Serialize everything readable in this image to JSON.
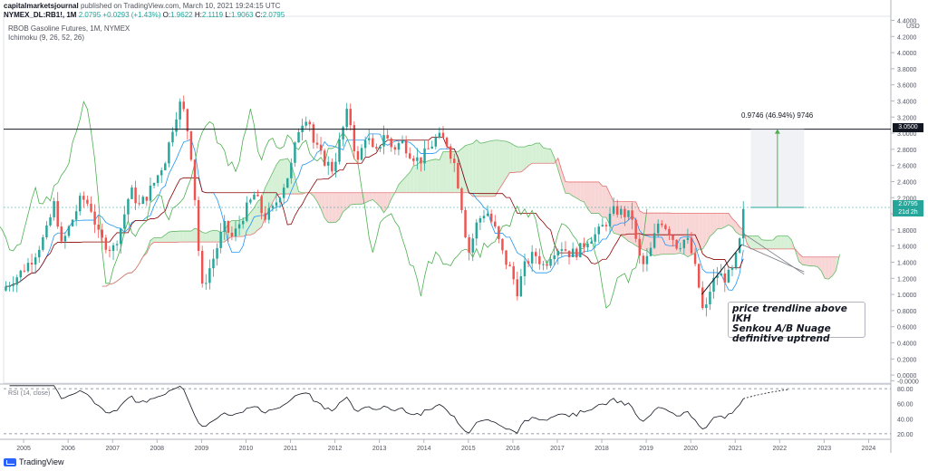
{
  "header": {
    "publisher": "capitalmarketsjournal",
    "published_text": "published on TradingView.com, March 10, 2021 19:24:15 UTC",
    "symbol_line": "NYMEX_DL:RB1!, 1M",
    "last_price": "2.0795",
    "change": "+0.0293 (+1.43%)",
    "open_label": "O:",
    "open": "1.9622",
    "high_label": "H:",
    "high": "2.1119",
    "low_label": "L:",
    "low": "1.9063",
    "close_label": "C:",
    "close": "2.0795"
  },
  "legend": {
    "title": "RBOB Gasoline Futures, 1M, NYMEX",
    "indicator": "Ichimoku (9, 26, 52, 26)"
  },
  "rsi_legend": "RSI (14, close)",
  "measure_label": "0.9746 (46.94%) 9746",
  "annotation": [
    "price trendline above IKH",
    "Senkou A/B Nuage",
    "definitive uptrend"
  ],
  "price_tags": {
    "level": "3.0500",
    "last": "2.0795",
    "countdown": "21d 2h"
  },
  "footer": {
    "brand": "TradingView"
  },
  "colors": {
    "up": "#26a69a",
    "down": "#ef5350",
    "kumo_bull": "#d6f0d6",
    "kumo_bear": "#f9d6d6",
    "tenkan": "#2196f3",
    "kijun": "#8b0000",
    "chikou": "#4caf50"
  },
  "chart_data": [
    {
      "type": "candlestick",
      "title": "RBOB Gasoline Futures, 1M, NYMEX",
      "y_axis_unit": "USD",
      "y_ticks": [
        "4.4000",
        "4.2000",
        "4.0000",
        "3.8000",
        "3.6000",
        "3.4000",
        "3.2000",
        "3.0000",
        "2.8000",
        "2.6000",
        "2.4000",
        "2.2000",
        "2.0000",
        "1.8000",
        "1.6000",
        "1.4000",
        "1.2000",
        "1.0000",
        "0.8000",
        "0.6000",
        "0.4000",
        "0.2000",
        "0.0000",
        "-0.0000"
      ],
      "x_ticks": [
        "2005",
        "2006",
        "2007",
        "2008",
        "2009",
        "2010",
        "2011",
        "2012",
        "2013",
        "2014",
        "2015",
        "2016",
        "2017",
        "2018",
        "2019",
        "2020",
        "2021",
        "2022",
        "2023",
        "2024"
      ],
      "ylim": [
        -0.1,
        4.45
      ],
      "xlim": [
        2004.55,
        2024.5
      ],
      "close_path": [
        [
          2004.6,
          1.1
        ],
        [
          2004.9,
          1.25
        ],
        [
          2005.2,
          1.45
        ],
        [
          2005.5,
          1.75
        ],
        [
          2005.7,
          2.15
        ],
        [
          2005.85,
          1.6
        ],
        [
          2006.0,
          1.8
        ],
        [
          2006.3,
          2.2
        ],
        [
          2006.5,
          2.1
        ],
        [
          2006.7,
          1.7
        ],
        [
          2006.9,
          1.6
        ],
        [
          2007.0,
          1.55
        ],
        [
          2007.2,
          1.85
        ],
        [
          2007.4,
          2.3
        ],
        [
          2007.6,
          2.1
        ],
        [
          2007.8,
          2.25
        ],
        [
          2007.95,
          2.4
        ],
        [
          2008.2,
          2.7
        ],
        [
          2008.4,
          3.2
        ],
        [
          2008.55,
          3.4
        ],
        [
          2008.7,
          3.0
        ],
        [
          2008.8,
          2.6
        ],
        [
          2008.9,
          1.8
        ],
        [
          2009.0,
          1.05
        ],
        [
          2009.1,
          1.2
        ],
        [
          2009.3,
          1.5
        ],
        [
          2009.5,
          1.85
        ],
        [
          2009.7,
          1.7
        ],
        [
          2009.95,
          2.0
        ],
        [
          2010.2,
          2.25
        ],
        [
          2010.4,
          1.95
        ],
        [
          2010.6,
          2.05
        ],
        [
          2010.8,
          2.3
        ],
        [
          2011.0,
          2.55
        ],
        [
          2011.2,
          3.1
        ],
        [
          2011.4,
          3.25
        ],
        [
          2011.5,
          2.9
        ],
        [
          2011.7,
          2.7
        ],
        [
          2011.95,
          2.55
        ],
        [
          2012.2,
          3.1
        ],
        [
          2012.3,
          3.3
        ],
        [
          2012.5,
          2.6
        ],
        [
          2012.7,
          3.0
        ],
        [
          2012.9,
          2.7
        ],
        [
          2013.1,
          3.0
        ],
        [
          2013.3,
          2.8
        ],
        [
          2013.5,
          2.9
        ],
        [
          2013.7,
          2.75
        ],
        [
          2013.9,
          2.65
        ],
        [
          2014.1,
          2.8
        ],
        [
          2014.3,
          2.95
        ],
        [
          2014.5,
          2.9
        ],
        [
          2014.7,
          2.6
        ],
        [
          2014.85,
          2.1
        ],
        [
          2015.0,
          1.5
        ],
        [
          2015.2,
          1.9
        ],
        [
          2015.4,
          2.05
        ],
        [
          2015.6,
          1.8
        ],
        [
          2015.8,
          1.45
        ],
        [
          2015.95,
          1.3
        ],
        [
          2016.1,
          1.05
        ],
        [
          2016.3,
          1.4
        ],
        [
          2016.5,
          1.5
        ],
        [
          2016.7,
          1.35
        ],
        [
          2016.9,
          1.55
        ],
        [
          2017.1,
          1.6
        ],
        [
          2017.3,
          1.5
        ],
        [
          2017.5,
          1.55
        ],
        [
          2017.7,
          1.7
        ],
        [
          2017.9,
          1.75
        ],
        [
          2018.1,
          1.9
        ],
        [
          2018.3,
          2.05
        ],
        [
          2018.5,
          2.0
        ],
        [
          2018.7,
          1.95
        ],
        [
          2018.8,
          1.5
        ],
        [
          2018.95,
          1.35
        ],
        [
          2019.1,
          1.55
        ],
        [
          2019.3,
          1.95
        ],
        [
          2019.5,
          1.8
        ],
        [
          2019.7,
          1.6
        ],
        [
          2019.9,
          1.7
        ],
        [
          2020.0,
          1.55
        ],
        [
          2020.15,
          1.2
        ],
        [
          2020.3,
          0.7
        ],
        [
          2020.45,
          1.1
        ],
        [
          2020.6,
          1.25
        ],
        [
          2020.8,
          1.2
        ],
        [
          2020.95,
          1.3
        ],
        [
          2021.1,
          1.65
        ],
        [
          2021.2,
          2.08
        ]
      ],
      "annotations": [
        "price trendline above IKH",
        "Senkou A/B Nuage",
        "definitive uptrend"
      ]
    },
    {
      "type": "line",
      "title": "RSI (14, close)",
      "y_ticks": [
        "80.00",
        "60.00",
        "40.00",
        "20.00"
      ],
      "ylim": [
        15,
        85
      ],
      "bands": [
        80,
        20
      ]
    }
  ]
}
